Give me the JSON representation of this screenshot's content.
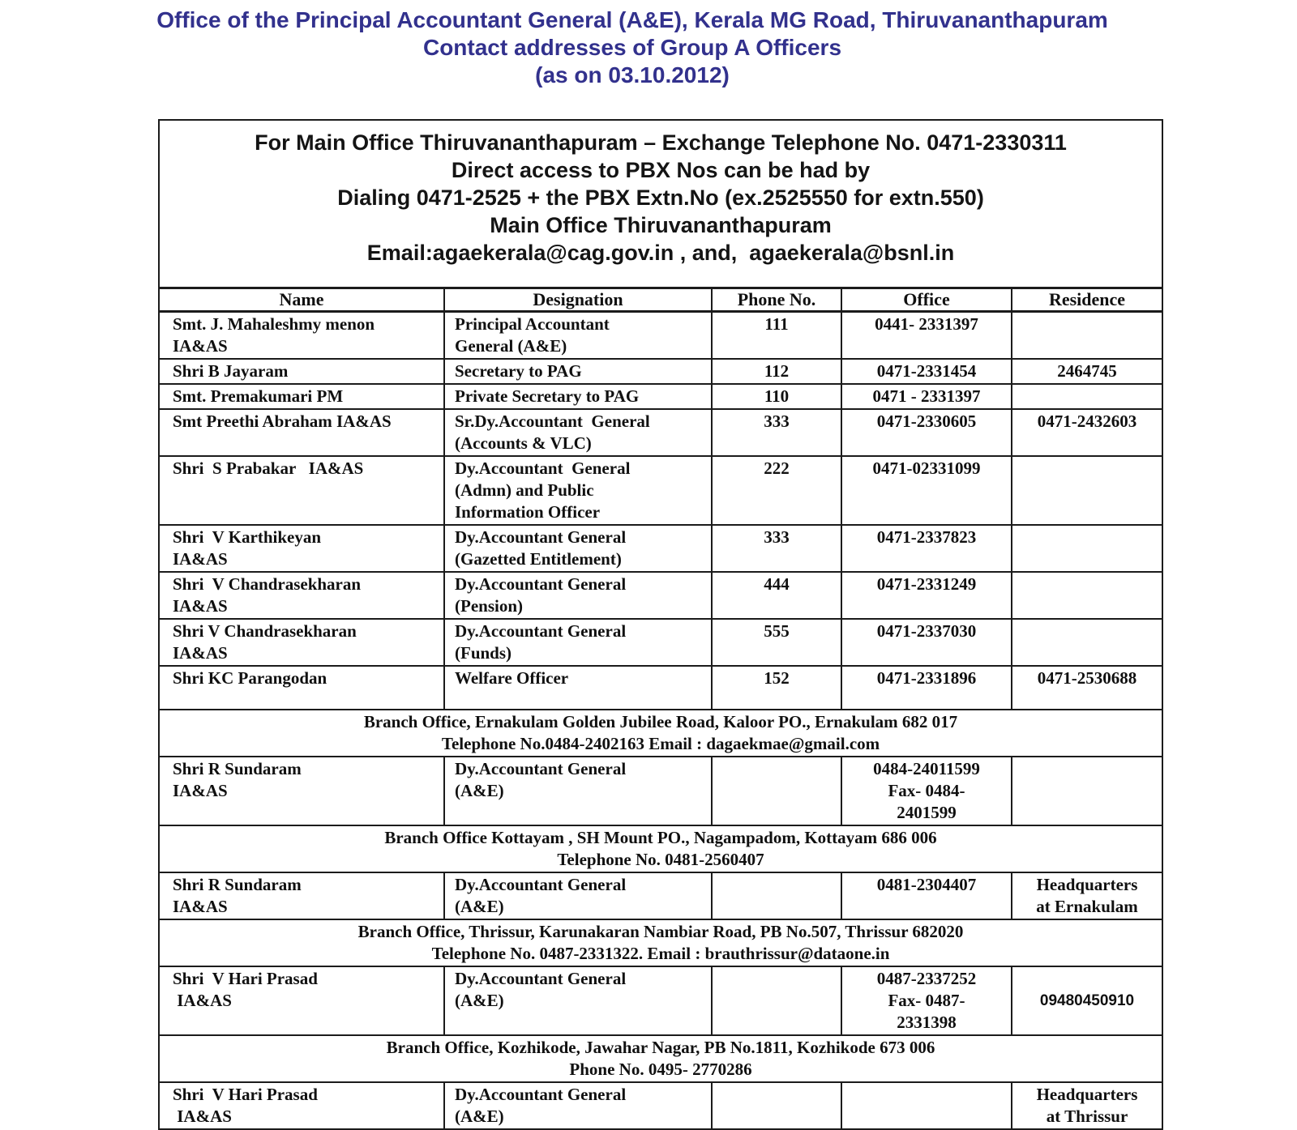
{
  "page_title": {
    "line1": "Office of the Principal Accountant General (A&E), Kerala MG Road, Thiruvananthapuram",
    "line2": "Contact addresses of Group A Officers",
    "line3": "(as on 03.10.2012)"
  },
  "colors": {
    "title_text": "#32318D",
    "body_text": "#101010",
    "table_border": "#1b1b1b",
    "background": "#ffffff"
  },
  "intro_box": {
    "lines": [
      "For Main Office Thiruvananthapuram – Exchange Telephone No. 0471-2330311",
      "Direct access to PBX Nos can be had by",
      "Dialing 0471-2525 + the PBX Extn.No (ex.2525550 for extn.550)",
      "Main Office Thiruvananthapuram",
      "Email:agaekerala@cag.gov.in , and,  agaekerala@bsnl.in"
    ]
  },
  "table": {
    "columns": [
      "Name",
      "Designation",
      "Phone No.",
      "Office",
      "Residence"
    ],
    "rows": [
      {
        "type": "officer",
        "name": "Smt. J. Mahaleshmy menon\nIA&AS",
        "designation": "Principal Accountant\nGeneral (A&E)",
        "phone": "111",
        "office": "0441- 2331397",
        "residence": ""
      },
      {
        "type": "officer",
        "name": "Shri B Jayaram",
        "designation": "Secretary to PAG",
        "phone": "112",
        "office": "0471-2331454",
        "residence": "2464745"
      },
      {
        "type": "officer",
        "name": "Smt. Premakumari PM",
        "designation": "Private Secretary to PAG",
        "phone": "110",
        "office": "0471 - 2331397",
        "residence": ""
      },
      {
        "type": "officer",
        "name": "Smt Preethi Abraham IA&AS",
        "designation": "Sr.Dy.Accountant  General\n(Accounts & VLC)",
        "phone": "333",
        "office": "0471-2330605",
        "residence": "0471-2432603"
      },
      {
        "type": "officer",
        "name": "Shri  S Prabakar   IA&AS",
        "designation": "Dy.Accountant  General\n(Admn) and Public\nInformation Officer",
        "phone": "222",
        "office": "0471-02331099",
        "residence": ""
      },
      {
        "type": "officer",
        "name": "Shri  V Karthikeyan\nIA&AS",
        "designation": "Dy.Accountant General\n(Gazetted Entitlement)",
        "phone": "333",
        "office": "0471-2337823",
        "residence": ""
      },
      {
        "type": "officer",
        "name": "Shri  V Chandrasekharan\nIA&AS",
        "designation": "Dy.Accountant General\n(Pension)",
        "phone": "444",
        "office": "0471-2331249",
        "residence": ""
      },
      {
        "type": "officer",
        "name": "Shri V Chandrasekharan\nIA&AS",
        "designation": "Dy.Accountant General\n(Funds)",
        "phone": "555",
        "office": "0471-2337030",
        "residence": ""
      },
      {
        "type": "officer",
        "name": "Shri KC Parangodan",
        "designation": "Welfare Officer",
        "phone": "152",
        "office": "0471-2331896",
        "residence": "0471-2530688"
      },
      {
        "type": "section",
        "text": "Branch Office, Ernakulam Golden Jubilee Road, Kaloor PO., Ernakulam 682 017\nTelephone No.0484-2402163 Email : dagaekmae@gmail.com"
      },
      {
        "type": "officer",
        "name": "Shri R Sundaram\nIA&AS",
        "designation": "Dy.Accountant General\n(A&E)",
        "phone": "",
        "office": "0484-24011599\nFax- 0484-\n2401599",
        "residence": ""
      },
      {
        "type": "section",
        "text": "Branch Office Kottayam , SH Mount PO., Nagampadom, Kottayam 686 006\nTelephone No. 0481-2560407"
      },
      {
        "type": "officer",
        "name": "Shri R Sundaram\nIA&AS",
        "designation": "Dy.Accountant General\n(A&E)",
        "phone": "",
        "office": "0481-2304407",
        "residence": "Headquarters\nat Ernakulam"
      },
      {
        "type": "section",
        "text": "Branch Office, Thrissur, Karunakaran Nambiar Road, PB No.507, Thrissur 682020\nTelephone No. 0487-2331322. Email : brauthrissur@dataone.in"
      },
      {
        "type": "officer",
        "name": "Shri  V Hari Prasad\n IA&AS",
        "designation": "Dy.Accountant General\n(A&E)",
        "phone": "",
        "office": "0487-2337252\nFax- 0487-\n2331398",
        "residence": "09480450910"
      },
      {
        "type": "section",
        "text": "Branch Office, Kozhikode, Jawahar Nagar, PB No.1811, Kozhikode 673 006\nPhone No. 0495- 2770286"
      },
      {
        "type": "officer",
        "name": "Shri  V Hari Prasad\n IA&AS",
        "designation": "Dy.Accountant General\n(A&E)",
        "phone": "",
        "office": "",
        "residence": "Headquarters\nat Thrissur"
      }
    ]
  }
}
